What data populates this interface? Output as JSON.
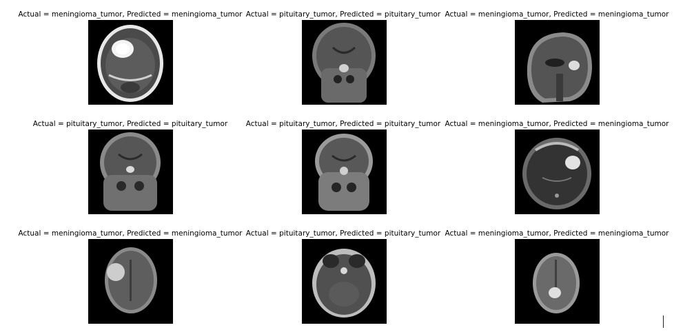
{
  "panels": [
    {
      "caption": "Actual = meningioma_tumor, Predicted = meningioma_tumor",
      "view": "axial-ct",
      "actual": "meningioma_tumor",
      "predicted": "meningioma_tumor"
    },
    {
      "caption": "Actual = pituitary_tumor, Predicted = pituitary_tumor",
      "view": "coronal",
      "actual": "pituitary_tumor",
      "predicted": "pituitary_tumor"
    },
    {
      "caption": "Actual = meningioma_tumor, Predicted = meningioma_tumor",
      "view": "sagittal",
      "actual": "meningioma_tumor",
      "predicted": "meningioma_tumor"
    },
    {
      "caption": "Actual = pituitary_tumor, Predicted = pituitary_tumor",
      "view": "coronal",
      "actual": "pituitary_tumor",
      "predicted": "pituitary_tumor"
    },
    {
      "caption": "Actual = pituitary_tumor, Predicted = pituitary_tumor",
      "view": "coronal",
      "actual": "pituitary_tumor",
      "predicted": "pituitary_tumor"
    },
    {
      "caption": "Actual = meningioma_tumor, Predicted = meningioma_tumor",
      "view": "axial",
      "actual": "meningioma_tumor",
      "predicted": "meningioma_tumor"
    },
    {
      "caption": "Actual = meningioma_tumor, Predicted = meningioma_tumor",
      "view": "axial",
      "actual": "meningioma_tumor",
      "predicted": "meningioma_tumor"
    },
    {
      "caption": "Actual = pituitary_tumor, Predicted = pituitary_tumor",
      "view": "axial",
      "actual": "pituitary_tumor",
      "predicted": "pituitary_tumor"
    },
    {
      "caption": "Actual = meningioma_tumor, Predicted = meningioma_tumor",
      "view": "axial",
      "actual": "meningioma_tumor",
      "predicted": "meningioma_tumor"
    }
  ]
}
